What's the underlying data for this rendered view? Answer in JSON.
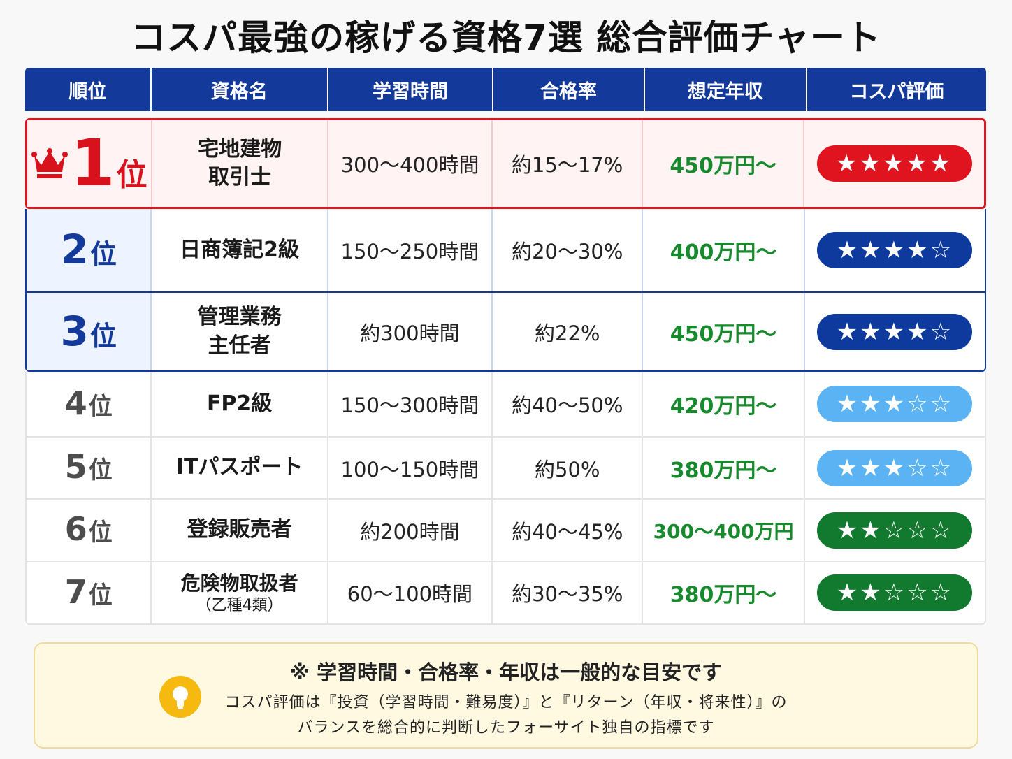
{
  "title": "コスパ最強の稼げる資格7選 総合評価チャート",
  "header": [
    "順位",
    "資格名",
    "学習時間",
    "合格率",
    "想定年収",
    "コスパ評価"
  ],
  "rank_suffix": "位",
  "rows": [
    {
      "rank": "1",
      "name1": "宅地建物",
      "name2": "取引士",
      "sub": "",
      "hours": "300〜400時間",
      "rate": "約15〜17%",
      "income": "450万円〜",
      "stars": "★★★★★",
      "score": 5,
      "star_color": "#e0141e",
      "theme": "red"
    },
    {
      "rank": "2",
      "name1": "日商簿記2級",
      "name2": "",
      "sub": "",
      "hours": "150〜250時間",
      "rate": "約20〜30%",
      "income": "400万円〜",
      "stars": "★★★★☆",
      "score": 4,
      "star_color": "#0e3a9e",
      "theme": "blue"
    },
    {
      "rank": "3",
      "name1": "管理業務",
      "name2": "主任者",
      "sub": "",
      "hours": "約300時間",
      "rate": "約22%",
      "income": "450万円〜",
      "stars": "★★★★☆",
      "score": 4,
      "star_color": "#0e3a9e",
      "theme": "blue"
    },
    {
      "rank": "4",
      "name1": "FP2級",
      "name2": "",
      "sub": "",
      "hours": "150〜300時間",
      "rate": "約40〜50%",
      "income": "420万円〜",
      "stars": "★★★☆☆",
      "score": 3,
      "star_color": "#5bb3f3",
      "theme": "gray"
    },
    {
      "rank": "5",
      "name1": "ITパスポート",
      "name2": "",
      "sub": "",
      "hours": "100〜150時間",
      "rate": "約50%",
      "income": "380万円〜",
      "stars": "★★★☆☆",
      "score": 3,
      "star_color": "#5bb3f3",
      "theme": "gray"
    },
    {
      "rank": "6",
      "name1": "登録販売者",
      "name2": "",
      "sub": "",
      "hours": "約200時間",
      "rate": "約40〜45%",
      "income": "300〜400万円",
      "stars": "★★☆☆☆",
      "score": 2,
      "star_color": "#117a2e",
      "theme": "gray"
    },
    {
      "rank": "7",
      "name1": "危険物取扱者",
      "name2": "",
      "sub": "（乙種4類）",
      "hours": "60〜100時間",
      "rate": "約30〜35%",
      "income": "380万円〜",
      "stars": "★★☆☆☆",
      "score": 2,
      "star_color": "#117a2e",
      "theme": "gray"
    }
  ],
  "note": {
    "heading": "※ 学習時間・合格率・年収は一般的な目安です",
    "line1": "コスパ評価は『投資（学習時間・難易度）』と『リターン（年収・将来性）』の",
    "line2": "バランスを総合的に判断したフォーサイト独自の指標です",
    "icon": "lightbulb-icon"
  },
  "colors": {
    "header": "#13399b",
    "top_rank": "#d8121c",
    "income": "#188a2e",
    "note_bg": "#fff9e1"
  }
}
